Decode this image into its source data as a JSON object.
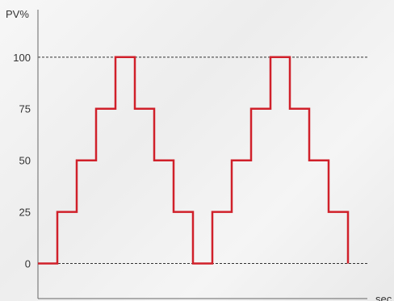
{
  "chart_data": {
    "type": "line",
    "style": "step",
    "ylabel": "PV%",
    "xlabel": "sec",
    "y_ticks": [
      "100",
      "75",
      "50",
      "25",
      "0"
    ],
    "y_tick_values": [
      100,
      75,
      50,
      25,
      0
    ],
    "ylim": [
      -17,
      123
    ],
    "xlim": [
      0,
      34
    ],
    "reference_lines": [
      0,
      100
    ],
    "grid": false,
    "series": [
      {
        "color": "#d0202a",
        "x": [
          0,
          2,
          2,
          4,
          4,
          6,
          6,
          8,
          8,
          10,
          10,
          12,
          12,
          14,
          14,
          16,
          16,
          18,
          18,
          20,
          20,
          22,
          22,
          24,
          24,
          26,
          26,
          28,
          28,
          30,
          30,
          32,
          32
        ],
        "values": [
          0,
          0,
          25,
          25,
          50,
          50,
          75,
          75,
          100,
          100,
          75,
          75,
          50,
          50,
          25,
          25,
          0,
          0,
          25,
          25,
          50,
          50,
          75,
          75,
          100,
          100,
          75,
          75,
          50,
          50,
          25,
          25,
          0
        ]
      }
    ]
  }
}
